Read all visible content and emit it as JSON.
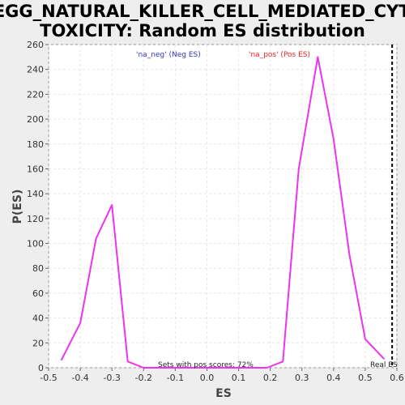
{
  "chart_data": {
    "type": "line",
    "title_line1": "KEGG_NATURAL_KILLER_CELL_MEDIATED_CYTO",
    "title_line2": "TOXICITY: Random ES distribution",
    "xlabel": "ES",
    "ylabel": "P(ES)",
    "xlim": [
      -0.5,
      0.6
    ],
    "ylim": [
      0,
      260
    ],
    "xticks": [
      -0.5,
      -0.4,
      -0.3,
      -0.2,
      -0.1,
      0.0,
      0.1,
      0.2,
      0.3,
      0.4,
      0.5,
      0.6
    ],
    "xtick_labels": [
      "-0.5",
      "-0.4",
      "-0.3",
      "-0.2",
      "-0.1",
      "0.0",
      "0.1",
      "0.2",
      "0.3",
      "0.4",
      "0.5",
      "0.6"
    ],
    "yticks": [
      0,
      20,
      40,
      60,
      80,
      100,
      120,
      140,
      160,
      180,
      200,
      220,
      240,
      260
    ],
    "grid": true,
    "series": [
      {
        "color": "#ee33ee",
        "x": [
          -0.46,
          -0.4,
          -0.35,
          -0.3,
          -0.25,
          -0.2,
          -0.15,
          -0.1,
          -0.05,
          0.0,
          0.05,
          0.1,
          0.15,
          0.19,
          0.24,
          0.29,
          0.35,
          0.4,
          0.45,
          0.5,
          0.56
        ],
        "y": [
          6,
          36,
          104,
          131,
          5,
          0,
          0,
          0,
          0,
          0,
          0,
          0,
          0,
          0,
          5,
          160,
          250,
          184,
          91,
          23,
          7
        ]
      }
    ],
    "legend": {
      "neg_label": "'na_neg' (Neg ES)",
      "neg_color": "#3333cc",
      "pos_label": "'na_pos' (Pos ES)",
      "pos_color": "#ee2222"
    },
    "real_es": {
      "x": 0.585,
      "label": "Real ES"
    },
    "annotation": "Sets with pos scores: 72%"
  }
}
